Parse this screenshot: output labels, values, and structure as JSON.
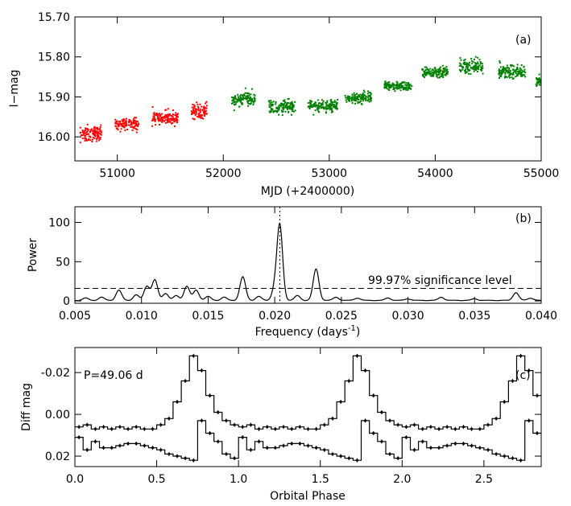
{
  "chart_data": [
    {
      "id": "a",
      "panel_label": "(a)",
      "type": "scatter",
      "xlabel": "MJD (+2400000)",
      "ylabel": "I−mag",
      "xlim": [
        50600,
        55000
      ],
      "ylim": [
        16.06,
        15.7
      ],
      "y_inverted": true,
      "xticks": [
        51000,
        52000,
        53000,
        54000,
        55000
      ],
      "xticklabels": [
        "51000",
        "52000",
        "53000",
        "54000",
        "55000"
      ],
      "yticks": [
        15.7,
        15.8,
        15.9,
        16.0
      ],
      "yticklabels": [
        "15.70",
        "15.80",
        "15.90",
        "16.00"
      ],
      "series": [
        {
          "color": "#ff0000",
          "clusters": [
            {
              "x": [
                50650,
                50850
              ],
              "y": 15.993,
              "spread": 0.018
            },
            {
              "x": [
                50980,
                51200
              ],
              "y": 15.968,
              "spread": 0.013
            },
            {
              "x": [
                51330,
                51580
              ],
              "y": 15.952,
              "spread": 0.014
            },
            {
              "x": [
                51700,
                51850
              ],
              "y": 15.935,
              "spread": 0.016
            }
          ]
        },
        {
          "color": "#008000",
          "clusters": [
            {
              "x": [
                52080,
                52300
              ],
              "y": 15.905,
              "spread": 0.017
            },
            {
              "x": [
                52430,
                52680
              ],
              "y": 15.925,
              "spread": 0.015
            },
            {
              "x": [
                52800,
                53080
              ],
              "y": 15.922,
              "spread": 0.013
            },
            {
              "x": [
                53150,
                53400
              ],
              "y": 15.903,
              "spread": 0.012
            },
            {
              "x": [
                53520,
                53780
              ],
              "y": 15.872,
              "spread": 0.011
            },
            {
              "x": [
                53870,
                54120
              ],
              "y": 15.838,
              "spread": 0.011
            },
            {
              "x": [
                54230,
                54450
              ],
              "y": 15.823,
              "spread": 0.016
            },
            {
              "x": [
                54600,
                54850
              ],
              "y": 15.838,
              "spread": 0.015
            },
            {
              "x": [
                54950,
                55000
              ],
              "y": 15.86,
              "spread": 0.01
            }
          ]
        }
      ]
    },
    {
      "id": "b",
      "panel_label": "(b)",
      "type": "line",
      "xlabel": "Frequency (days⁻¹)",
      "ylabel": "Power",
      "xlim": [
        0.005,
        0.04
      ],
      "ylim": [
        -3,
        120
      ],
      "xticks": [
        0.005,
        0.01,
        0.015,
        0.02,
        0.025,
        0.03,
        0.035,
        0.04
      ],
      "xticklabels": [
        "0.005",
        "0.010",
        "0.015",
        "0.020",
        "0.025",
        "0.030",
        "0.035",
        "0.040"
      ],
      "yticks": [
        0,
        50,
        100
      ],
      "yticklabels": [
        "0",
        "50",
        "100"
      ],
      "significance_level": 16,
      "significance_label": "99.97% significance level",
      "peak_marker_x": 0.02038,
      "peaks": [
        {
          "f": 0.0058,
          "p": 3
        },
        {
          "f": 0.007,
          "p": 4
        },
        {
          "f": 0.0083,
          "p": 13
        },
        {
          "f": 0.0096,
          "p": 7
        },
        {
          "f": 0.0104,
          "p": 18
        },
        {
          "f": 0.011,
          "p": 26
        },
        {
          "f": 0.0118,
          "p": 9
        },
        {
          "f": 0.0126,
          "p": 6
        },
        {
          "f": 0.0134,
          "p": 18
        },
        {
          "f": 0.0141,
          "p": 13
        },
        {
          "f": 0.015,
          "p": 5
        },
        {
          "f": 0.0162,
          "p": 4
        },
        {
          "f": 0.0176,
          "p": 30
        },
        {
          "f": 0.0188,
          "p": 5
        },
        {
          "f": 0.02,
          "p": 14
        },
        {
          "f": 0.02038,
          "p": 95
        },
        {
          "f": 0.0217,
          "p": 6
        },
        {
          "f": 0.0231,
          "p": 40
        },
        {
          "f": 0.0246,
          "p": 4
        },
        {
          "f": 0.0262,
          "p": 3
        },
        {
          "f": 0.0285,
          "p": 3
        },
        {
          "f": 0.03,
          "p": 2
        },
        {
          "f": 0.0325,
          "p": 4
        },
        {
          "f": 0.035,
          "p": 2
        },
        {
          "f": 0.0381,
          "p": 10
        },
        {
          "f": 0.0392,
          "p": 3
        }
      ]
    },
    {
      "id": "c",
      "panel_label": "(c)",
      "type": "line",
      "annotation": "P=49.06 d",
      "xlabel": "Orbital Phase",
      "ylabel": "Diff mag",
      "xlim": [
        0.0,
        2.85
      ],
      "ylim": [
        0.025,
        -0.032
      ],
      "y_inverted": true,
      "xticks": [
        0.0,
        0.5,
        1.0,
        1.5,
        2.0,
        2.5
      ],
      "xticklabels": [
        "0.0",
        "0.5",
        "1.0",
        "1.5",
        "2.0",
        "2.5"
      ],
      "yticks": [
        -0.02,
        0.0,
        0.02
      ],
      "yticklabels": [
        "-0.02",
        "0.00",
        "0.02"
      ],
      "bins_per_cycle": 20,
      "series": [
        {
          "values": [
            0.006,
            0.005,
            0.007,
            0.006,
            0.007,
            0.006,
            0.007,
            0.006,
            0.007,
            0.007,
            0.005,
            0.002,
            -0.006,
            -0.016,
            -0.028,
            -0.021,
            -0.009,
            -0.001,
            0.003,
            0.005
          ]
        },
        {
          "values": [
            0.011,
            0.017,
            0.013,
            0.016,
            0.016,
            0.015,
            0.014,
            0.014,
            0.015,
            0.016,
            0.017,
            0.019,
            0.02,
            0.021,
            0.022,
            0.003,
            0.009,
            0.013,
            0.019,
            0.021
          ]
        }
      ]
    }
  ]
}
